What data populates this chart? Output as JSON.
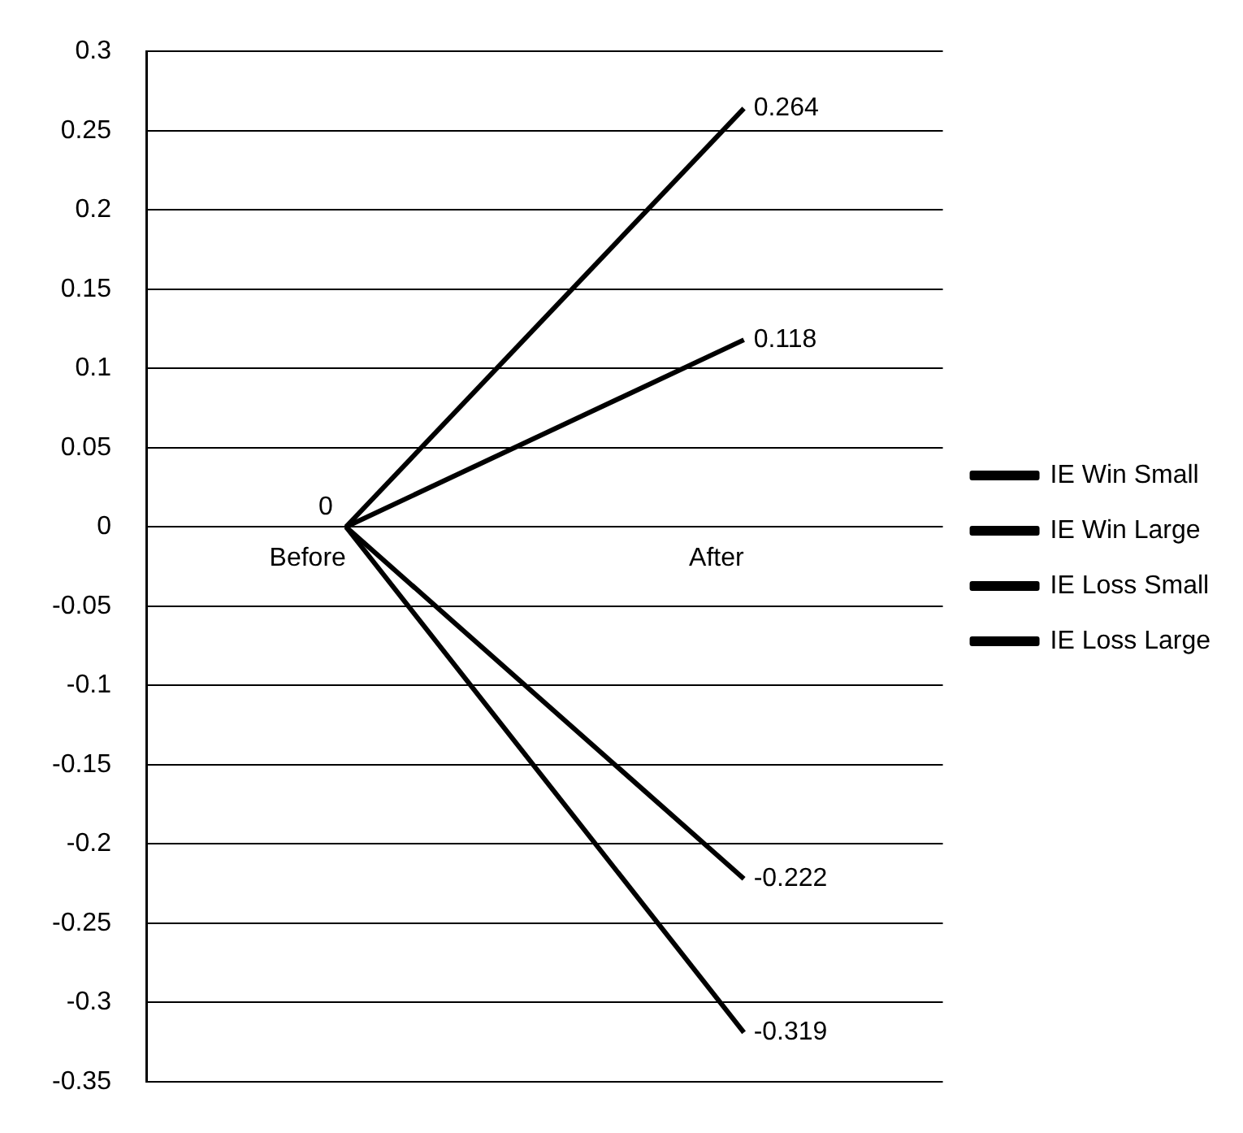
{
  "chart_data": {
    "type": "line",
    "categories": [
      "Before",
      "After"
    ],
    "series": [
      {
        "name": "IE Win Small",
        "color": "#000000",
        "values": [
          0,
          0.118
        ],
        "value_labels": [
          "0",
          "0.118"
        ]
      },
      {
        "name": "IE Win Large",
        "color": "#000000",
        "values": [
          0,
          0.264
        ],
        "value_labels": [
          null,
          "0.264"
        ]
      },
      {
        "name": "IE Loss Small",
        "color": "#000000",
        "values": [
          0,
          -0.222
        ],
        "value_labels": [
          null,
          "-0.222"
        ]
      },
      {
        "name": "IE Loss Large",
        "color": "#000000",
        "values": [
          0,
          -0.319
        ],
        "value_labels": [
          null,
          "-0.319"
        ]
      }
    ],
    "ylim": [
      -0.35,
      0.3
    ],
    "yticks": [
      -0.35,
      -0.3,
      -0.25,
      -0.2,
      -0.15,
      -0.1,
      -0.05,
      0,
      0.05,
      0.1,
      0.15,
      0.2,
      0.25,
      0.3
    ],
    "grid": "y",
    "legend": "right",
    "marker": "none",
    "line_style": "solid"
  }
}
